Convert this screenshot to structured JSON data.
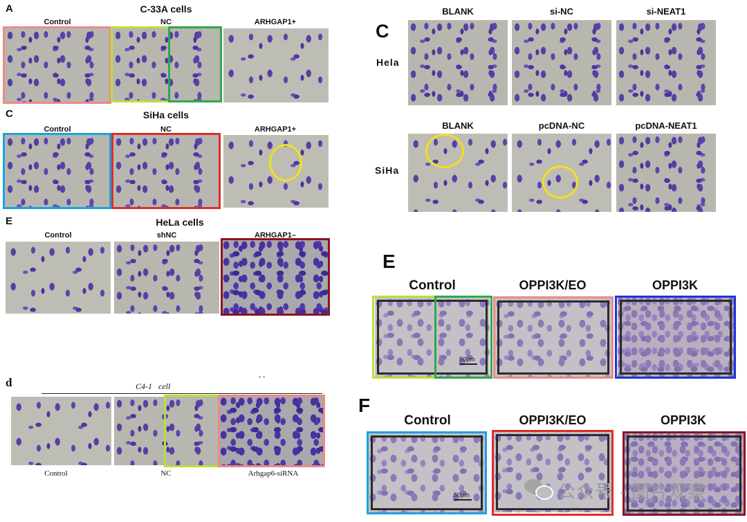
{
  "left": {
    "panelA": {
      "letter": "A",
      "title": "C-33A cells",
      "cols": [
        "Control",
        "NC",
        "ARHGAP1+"
      ]
    },
    "panelC": {
      "letter": "C",
      "title": "SiHa cells",
      "cols": [
        "Control",
        "NC",
        "ARHGAP1+"
      ]
    },
    "panelE": {
      "letter": "E",
      "title": "HeLa cells",
      "cols": [
        "Control",
        "shNC",
        "ARHGAP1–"
      ]
    },
    "panelD": {
      "letter": "d",
      "title": "C4-1   cell",
      "dots": "- -",
      "cols": [
        "Control",
        "NC",
        "Arhgap6-siRNA"
      ]
    }
  },
  "right": {
    "panelC": {
      "letter": "C",
      "top_cols": [
        "BLANK",
        "si-NC",
        "si-NEAT1"
      ],
      "bottom_cols": [
        "BLANK",
        "pcDNA-NC",
        "pcDNA-NEAT1"
      ],
      "rows": [
        "Hela",
        "SiHa"
      ]
    },
    "panelE": {
      "letter": "E",
      "cols": [
        "Control",
        "OPPI3K/EO",
        "OPPI3K"
      ],
      "scale": "50μm"
    },
    "panelF": {
      "letter": "F",
      "cols": [
        "Control",
        "OPPI3K/EO",
        "OPPI3K"
      ],
      "scale": "50μm"
    }
  },
  "watermark": {
    "text": "公众号 · 图片观察"
  },
  "colors": {
    "salmon": "#ee8a84",
    "lime": "#b7e23a",
    "green": "#2fa84a",
    "blue": "#1aa3e0",
    "red": "#e02a2a",
    "darkred": "#8b1220",
    "navy": "#1b35d6",
    "yellow": "#f2e01a"
  }
}
